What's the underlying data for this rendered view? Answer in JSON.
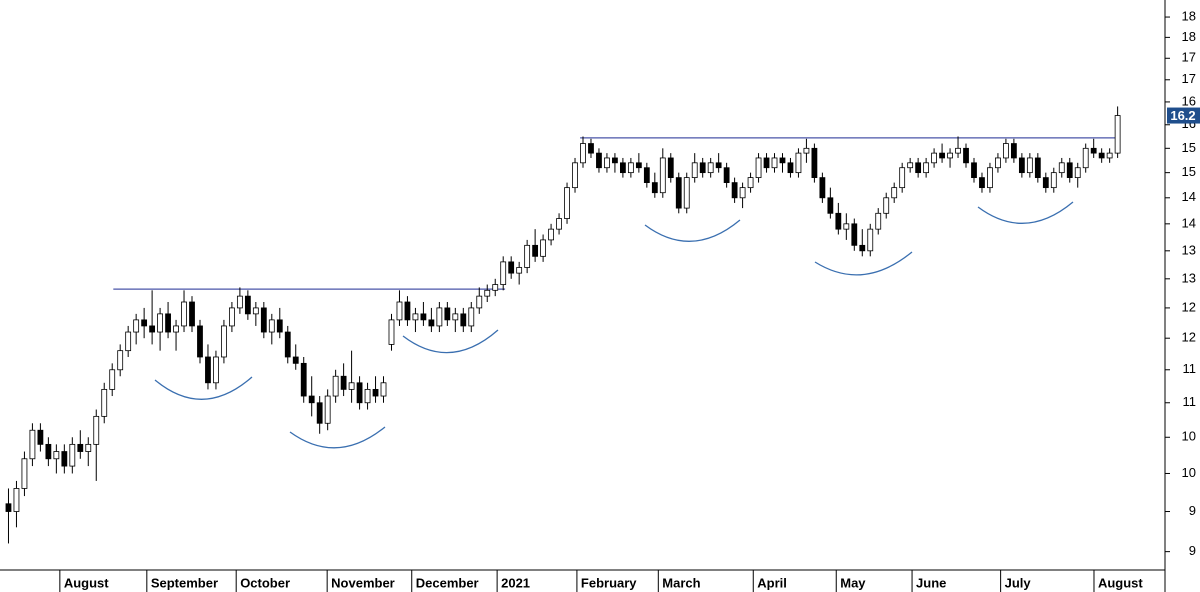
{
  "chart_data": {
    "type": "candlestick",
    "log_scale": true,
    "ylim": [
      8.78,
      18.93
    ],
    "yticks": [
      {
        "value": 9,
        "label": "9"
      },
      {
        "value": 9.5,
        "label": "9"
      },
      {
        "value": 10,
        "label": "10"
      },
      {
        "value": 10.5,
        "label": "10"
      },
      {
        "value": 11,
        "label": "11"
      },
      {
        "value": 11.5,
        "label": "11"
      },
      {
        "value": 12,
        "label": "12"
      },
      {
        "value": 12.5,
        "label": "12"
      },
      {
        "value": 13,
        "label": "13"
      },
      {
        "value": 13.5,
        "label": "13"
      },
      {
        "value": 14,
        "label": "14"
      },
      {
        "value": 14.5,
        "label": "14"
      },
      {
        "value": 15,
        "label": "15"
      },
      {
        "value": 15.5,
        "label": "15"
      },
      {
        "value": 16,
        "label": "16"
      },
      {
        "value": 16.5,
        "label": "16"
      },
      {
        "value": 17,
        "label": "17"
      },
      {
        "value": 17.5,
        "label": "17"
      },
      {
        "value": 18,
        "label": "18"
      },
      {
        "value": 18.5,
        "label": "18"
      }
    ],
    "xlim": [
      -1,
      145
    ],
    "xticks": [
      {
        "value": 6.5,
        "label": "August"
      },
      {
        "value": 17.4,
        "label": "September"
      },
      {
        "value": 28.6,
        "label": "October"
      },
      {
        "value": 40,
        "label": "November"
      },
      {
        "value": 50.6,
        "label": "December"
      },
      {
        "value": 61.3,
        "label": "2021"
      },
      {
        "value": 71.3,
        "label": "February"
      },
      {
        "value": 81.5,
        "label": "March"
      },
      {
        "value": 93.4,
        "label": "April"
      },
      {
        "value": 103.8,
        "label": "May"
      },
      {
        "value": 113.3,
        "label": "June"
      },
      {
        "value": 124.4,
        "label": "July"
      },
      {
        "value": 136.1,
        "label": "August"
      }
    ],
    "up_color": "#ffffff",
    "down_color": "#000000",
    "line_color": "#4a55a8",
    "last_price_color": "#1f4e8c",
    "resistance_lines": [
      {
        "value": 12.82,
        "from": 13.2,
        "to": 62.3
      },
      {
        "value": 15.72,
        "from": 71.7,
        "to": 139.3
      }
    ],
    "candles": [
      [
        9.6,
        9.8,
        9.1,
        9.5
      ],
      [
        9.5,
        9.9,
        9.3,
        9.8
      ],
      [
        9.8,
        10.3,
        9.7,
        10.2
      ],
      [
        10.2,
        10.7,
        10.1,
        10.6
      ],
      [
        10.6,
        10.7,
        10.3,
        10.4
      ],
      [
        10.4,
        10.5,
        10.1,
        10.2
      ],
      [
        10.2,
        10.4,
        10.0,
        10.3
      ],
      [
        10.3,
        10.4,
        10.0,
        10.1
      ],
      [
        10.1,
        10.5,
        10.0,
        10.4
      ],
      [
        10.4,
        10.6,
        10.2,
        10.3
      ],
      [
        10.3,
        10.5,
        10.1,
        10.4
      ],
      [
        10.4,
        10.9,
        9.9,
        10.8
      ],
      [
        10.8,
        11.3,
        10.7,
        11.2
      ],
      [
        11.2,
        11.6,
        11.1,
        11.5
      ],
      [
        11.5,
        11.9,
        11.4,
        11.8
      ],
      [
        11.8,
        12.2,
        11.7,
        12.1
      ],
      [
        12.1,
        12.4,
        11.9,
        12.3
      ],
      [
        12.3,
        12.5,
        12.0,
        12.2
      ],
      [
        12.2,
        12.8,
        11.9,
        12.1
      ],
      [
        12.1,
        12.5,
        11.8,
        12.4
      ],
      [
        12.4,
        12.6,
        12.0,
        12.1
      ],
      [
        12.1,
        12.3,
        11.8,
        12.2
      ],
      [
        12.2,
        12.8,
        12.1,
        12.6
      ],
      [
        12.6,
        12.7,
        12.1,
        12.2
      ],
      [
        12.2,
        12.3,
        11.6,
        11.7
      ],
      [
        11.7,
        11.9,
        11.2,
        11.3
      ],
      [
        11.3,
        11.8,
        11.2,
        11.7
      ],
      [
        11.7,
        12.3,
        11.6,
        12.2
      ],
      [
        12.2,
        12.6,
        12.1,
        12.5
      ],
      [
        12.5,
        12.85,
        12.4,
        12.7
      ],
      [
        12.7,
        12.8,
        12.3,
        12.4
      ],
      [
        12.4,
        12.6,
        12.2,
        12.5
      ],
      [
        12.5,
        12.6,
        12.0,
        12.1
      ],
      [
        12.1,
        12.4,
        11.9,
        12.3
      ],
      [
        12.3,
        12.5,
        12.0,
        12.1
      ],
      [
        12.1,
        12.2,
        11.6,
        11.7
      ],
      [
        11.7,
        11.9,
        11.5,
        11.6
      ],
      [
        11.6,
        11.7,
        11.0,
        11.1
      ],
      [
        11.1,
        11.4,
        10.8,
        11.0
      ],
      [
        11.0,
        11.1,
        10.55,
        10.7
      ],
      [
        10.7,
        11.2,
        10.6,
        11.1
      ],
      [
        11.1,
        11.5,
        11.0,
        11.4
      ],
      [
        11.4,
        11.6,
        11.1,
        11.2
      ],
      [
        11.2,
        11.8,
        11.0,
        11.3
      ],
      [
        11.3,
        11.4,
        10.9,
        11.0
      ],
      [
        11.0,
        11.3,
        10.9,
        11.2
      ],
      [
        11.2,
        11.4,
        11.0,
        11.1
      ],
      [
        11.1,
        11.4,
        11.0,
        11.3
      ],
      [
        11.9,
        12.4,
        11.8,
        12.3
      ],
      [
        12.3,
        12.8,
        12.2,
        12.6
      ],
      [
        12.6,
        12.7,
        12.2,
        12.3
      ],
      [
        12.3,
        12.5,
        12.1,
        12.4
      ],
      [
        12.4,
        12.6,
        12.2,
        12.3
      ],
      [
        12.3,
        12.5,
        12.1,
        12.2
      ],
      [
        12.2,
        12.6,
        12.1,
        12.5
      ],
      [
        12.5,
        12.6,
        12.2,
        12.3
      ],
      [
        12.3,
        12.5,
        12.1,
        12.4
      ],
      [
        12.4,
        12.5,
        12.1,
        12.2
      ],
      [
        12.2,
        12.6,
        12.1,
        12.5
      ],
      [
        12.5,
        12.85,
        12.4,
        12.7
      ],
      [
        12.7,
        12.9,
        12.6,
        12.8
      ],
      [
        12.8,
        13.0,
        12.7,
        12.9
      ],
      [
        12.9,
        13.4,
        12.8,
        13.3
      ],
      [
        13.3,
        13.4,
        13.0,
        13.1
      ],
      [
        13.1,
        13.3,
        12.9,
        13.2
      ],
      [
        13.2,
        13.7,
        13.1,
        13.6
      ],
      [
        13.6,
        13.9,
        13.3,
        13.4
      ],
      [
        13.4,
        13.8,
        13.3,
        13.7
      ],
      [
        13.7,
        14.0,
        13.6,
        13.9
      ],
      [
        13.9,
        14.2,
        13.8,
        14.1
      ],
      [
        14.1,
        14.8,
        14.0,
        14.7
      ],
      [
        14.7,
        15.3,
        14.6,
        15.2
      ],
      [
        15.2,
        15.75,
        15.1,
        15.6
      ],
      [
        15.6,
        15.7,
        15.3,
        15.4
      ],
      [
        15.4,
        15.5,
        15.0,
        15.1
      ],
      [
        15.1,
        15.4,
        15.0,
        15.3
      ],
      [
        15.3,
        15.4,
        15.0,
        15.2
      ],
      [
        15.2,
        15.3,
        14.9,
        15.0
      ],
      [
        15.0,
        15.3,
        14.9,
        15.2
      ],
      [
        15.2,
        15.4,
        15.0,
        15.1
      ],
      [
        15.1,
        15.2,
        14.7,
        14.8
      ],
      [
        14.8,
        15.0,
        14.5,
        14.6
      ],
      [
        14.6,
        15.5,
        14.5,
        15.3
      ],
      [
        15.3,
        15.4,
        14.8,
        14.9
      ],
      [
        14.9,
        15.0,
        14.2,
        14.3
      ],
      [
        14.3,
        15.0,
        14.2,
        14.9
      ],
      [
        14.9,
        15.4,
        14.8,
        15.2
      ],
      [
        15.2,
        15.3,
        14.9,
        15.0
      ],
      [
        15.0,
        15.3,
        14.9,
        15.2
      ],
      [
        15.2,
        15.4,
        15.0,
        15.1
      ],
      [
        15.1,
        15.2,
        14.7,
        14.8
      ],
      [
        14.8,
        14.9,
        14.4,
        14.5
      ],
      [
        14.5,
        14.8,
        14.3,
        14.7
      ],
      [
        14.7,
        15.0,
        14.6,
        14.9
      ],
      [
        14.9,
        15.4,
        14.8,
        15.3
      ],
      [
        15.3,
        15.4,
        15.0,
        15.1
      ],
      [
        15.1,
        15.4,
        15.0,
        15.3
      ],
      [
        15.3,
        15.4,
        15.0,
        15.2
      ],
      [
        15.2,
        15.3,
        14.9,
        15.0
      ],
      [
        15.0,
        15.5,
        14.9,
        15.4
      ],
      [
        15.4,
        15.7,
        15.2,
        15.5
      ],
      [
        15.5,
        15.6,
        14.8,
        14.9
      ],
      [
        14.9,
        15.0,
        14.4,
        14.5
      ],
      [
        14.5,
        14.7,
        14.1,
        14.2
      ],
      [
        14.2,
        14.4,
        13.8,
        13.9
      ],
      [
        13.9,
        14.2,
        13.7,
        14.0
      ],
      [
        14.0,
        14.1,
        13.5,
        13.6
      ],
      [
        13.6,
        13.9,
        13.4,
        13.5
      ],
      [
        13.5,
        14.0,
        13.4,
        13.9
      ],
      [
        13.9,
        14.3,
        13.8,
        14.2
      ],
      [
        14.2,
        14.6,
        14.1,
        14.5
      ],
      [
        14.5,
        14.8,
        14.4,
        14.7
      ],
      [
        14.7,
        15.2,
        14.6,
        15.1
      ],
      [
        15.1,
        15.3,
        15.0,
        15.2
      ],
      [
        15.2,
        15.3,
        14.9,
        15.0
      ],
      [
        15.0,
        15.3,
        14.9,
        15.2
      ],
      [
        15.2,
        15.5,
        15.1,
        15.4
      ],
      [
        15.4,
        15.6,
        15.2,
        15.3
      ],
      [
        15.3,
        15.5,
        15.1,
        15.4
      ],
      [
        15.4,
        15.75,
        15.3,
        15.5
      ],
      [
        15.5,
        15.6,
        15.1,
        15.2
      ],
      [
        15.2,
        15.3,
        14.8,
        14.9
      ],
      [
        14.9,
        15.0,
        14.6,
        14.7
      ],
      [
        14.7,
        15.2,
        14.6,
        15.1
      ],
      [
        15.1,
        15.4,
        15.0,
        15.3
      ],
      [
        15.3,
        15.7,
        15.2,
        15.6
      ],
      [
        15.6,
        15.7,
        15.2,
        15.3
      ],
      [
        15.3,
        15.4,
        14.9,
        15.0
      ],
      [
        15.0,
        15.4,
        14.9,
        15.3
      ],
      [
        15.3,
        15.4,
        14.8,
        14.9
      ],
      [
        14.9,
        15.0,
        14.6,
        14.7
      ],
      [
        14.7,
        15.1,
        14.6,
        15.0
      ],
      [
        15.0,
        15.3,
        14.9,
        15.2
      ],
      [
        15.2,
        15.3,
        14.8,
        14.9
      ],
      [
        14.9,
        15.2,
        14.7,
        15.1
      ],
      [
        15.1,
        15.6,
        15.0,
        15.5
      ],
      [
        15.5,
        15.7,
        15.3,
        15.4
      ],
      [
        15.4,
        15.5,
        15.2,
        15.3
      ],
      [
        15.3,
        15.5,
        15.2,
        15.4
      ],
      [
        15.4,
        16.4,
        15.3,
        16.2
      ]
    ]
  }
}
